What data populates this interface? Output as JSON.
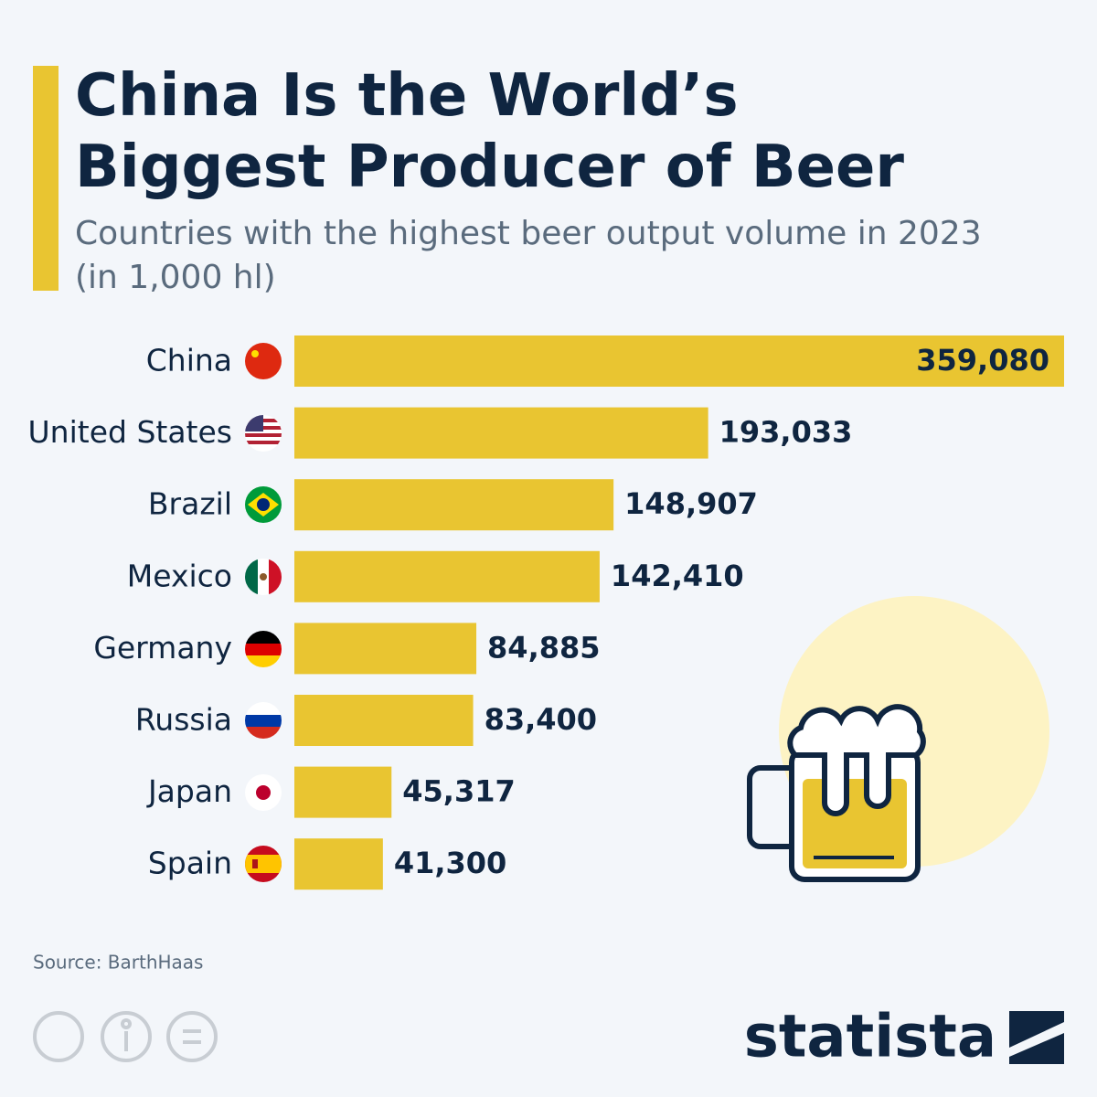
{
  "chart_data": {
    "type": "bar",
    "title": "China Is the World’s Biggest Producer of Beer",
    "subtitle": "Countries with the highest beer output volume in 2023 (in 1,000 hl)",
    "categories": [
      "China",
      "United States",
      "Brazil",
      "Mexico",
      "Germany",
      "Russia",
      "Japan",
      "Spain"
    ],
    "values": [
      359080,
      193033,
      148907,
      142410,
      84885,
      83400,
      45317,
      41300
    ],
    "value_labels": [
      "359,080",
      "193,033",
      "148,907",
      "142,410",
      "84,885",
      "83,400",
      "45,317",
      "41,300"
    ],
    "color": "#e9c531",
    "source": "Source: BarthHaas",
    "brand": "statista"
  }
}
